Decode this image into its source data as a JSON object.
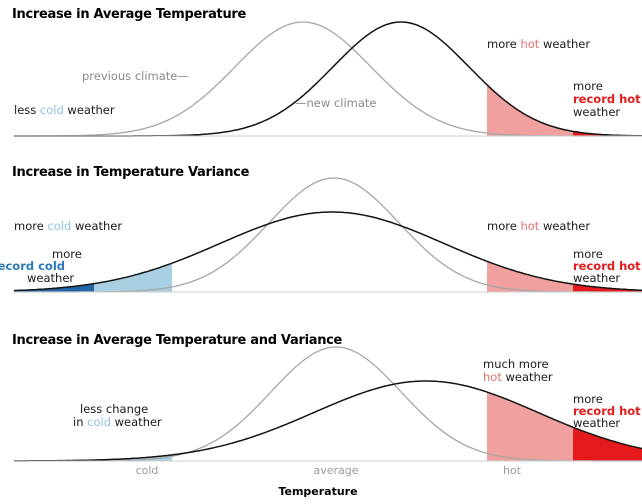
{
  "panels": [
    {
      "title": "Increase in Average Temperature",
      "labels": {
        "previous_climate": "previous climate",
        "new_climate": "new climate",
        "cold_prefix": "less ",
        "cold_word": "cold",
        "cold_suffix": " weather",
        "hot_prefix": "more ",
        "hot_word": "hot",
        "hot_suffix": " weather",
        "record_line1": "more",
        "record_line2": "record hot",
        "record_line3": "weather"
      }
    },
    {
      "title": "Increase in Temperature Variance",
      "labels": {
        "cold_prefix": "more ",
        "cold_word": "cold",
        "cold_suffix": " weather",
        "record_cold_line1": "more",
        "record_cold_line2": "record cold",
        "record_cold_line3": "weather",
        "hot_prefix": "more ",
        "hot_word": "hot",
        "hot_suffix": " weather",
        "record_line1": "more",
        "record_line2": "record hot",
        "record_line3": "weather"
      }
    },
    {
      "title": "Increase in Average Temperature and Variance",
      "labels": {
        "cold_line1": "less change",
        "cold_prefix": "in ",
        "cold_word": "cold",
        "cold_suffix": " weather",
        "hot_line1": "much more",
        "hot_word": "hot",
        "hot_suffix": " weather",
        "record_line1": "more",
        "record_line2": "record hot",
        "record_line3": "weather"
      }
    }
  ],
  "axis": {
    "title": "Temperature",
    "ticks": [
      "cold",
      "average",
      "hot"
    ]
  },
  "colors": {
    "hot_zone": "#f0a09e",
    "record_hot_zone": "#e41a1c",
    "cold_zone": "#a9d0e2",
    "record_cold_zone": "#2167a8",
    "previous_curve": "#a6a6a6",
    "new_curve": "#141414"
  }
}
